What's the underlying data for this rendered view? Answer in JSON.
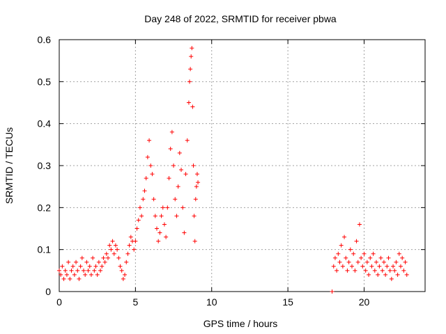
{
  "chart_data": {
    "type": "scatter",
    "title": "Day 248 of 2022, SRMTID for receiver pbwa",
    "xlabel": "GPS time / hours",
    "ylabel": "SRMTID / TECUs",
    "xlim": [
      0,
      24
    ],
    "ylim": [
      0,
      0.6
    ],
    "xticks": [
      0,
      5,
      10,
      15,
      20
    ],
    "xtick_labels": [
      "0",
      "5",
      "10",
      "15",
      "20"
    ],
    "yticks": [
      0,
      0.1,
      0.2,
      0.3,
      0.4,
      0.5,
      0.6
    ],
    "ytick_labels": [
      "0",
      "0.1",
      "0.2",
      "0.3",
      "0.4",
      "0.5",
      "0.6"
    ],
    "grid": true,
    "marker": "+",
    "color": "#ff0000",
    "series": [
      {
        "name": "SRMTID",
        "points": [
          [
            0.0,
            0.05
          ],
          [
            0.1,
            0.04
          ],
          [
            0.2,
            0.06
          ],
          [
            0.3,
            0.03
          ],
          [
            0.4,
            0.05
          ],
          [
            0.5,
            0.04
          ],
          [
            0.6,
            0.07
          ],
          [
            0.7,
            0.03
          ],
          [
            0.8,
            0.05
          ],
          [
            0.9,
            0.06
          ],
          [
            1.0,
            0.04
          ],
          [
            1.1,
            0.07
          ],
          [
            1.2,
            0.05
          ],
          [
            1.3,
            0.03
          ],
          [
            1.4,
            0.06
          ],
          [
            1.5,
            0.08
          ],
          [
            1.6,
            0.05
          ],
          [
            1.7,
            0.04
          ],
          [
            1.8,
            0.07
          ],
          [
            1.9,
            0.05
          ],
          [
            2.0,
            0.06
          ],
          [
            2.1,
            0.04
          ],
          [
            2.2,
            0.08
          ],
          [
            2.3,
            0.05
          ],
          [
            2.4,
            0.06
          ],
          [
            2.5,
            0.04
          ],
          [
            2.6,
            0.07
          ],
          [
            2.7,
            0.05
          ],
          [
            2.8,
            0.06
          ],
          [
            2.9,
            0.08
          ],
          [
            3.0,
            0.07
          ],
          [
            3.1,
            0.09
          ],
          [
            3.2,
            0.08
          ],
          [
            3.3,
            0.11
          ],
          [
            3.4,
            0.1
          ],
          [
            3.5,
            0.12
          ],
          [
            3.6,
            0.09
          ],
          [
            3.7,
            0.11
          ],
          [
            3.8,
            0.1
          ],
          [
            3.9,
            0.08
          ],
          [
            4.0,
            0.06
          ],
          [
            4.1,
            0.05
          ],
          [
            4.2,
            0.03
          ],
          [
            4.3,
            0.04
          ],
          [
            4.4,
            0.07
          ],
          [
            4.5,
            0.09
          ],
          [
            4.6,
            0.11
          ],
          [
            4.7,
            0.13
          ],
          [
            4.8,
            0.12
          ],
          [
            4.9,
            0.1
          ],
          [
            5.0,
            0.12
          ],
          [
            5.1,
            0.15
          ],
          [
            5.2,
            0.17
          ],
          [
            5.3,
            0.2
          ],
          [
            5.4,
            0.18
          ],
          [
            5.5,
            0.22
          ],
          [
            5.6,
            0.24
          ],
          [
            5.7,
            0.27
          ],
          [
            5.8,
            0.32
          ],
          [
            5.9,
            0.36
          ],
          [
            6.0,
            0.3
          ],
          [
            6.1,
            0.28
          ],
          [
            6.2,
            0.22
          ],
          [
            6.3,
            0.18
          ],
          [
            6.4,
            0.15
          ],
          [
            6.5,
            0.12
          ],
          [
            6.6,
            0.14
          ],
          [
            6.7,
            0.18
          ],
          [
            6.8,
            0.2
          ],
          [
            6.9,
            0.16
          ],
          [
            7.0,
            0.13
          ],
          [
            7.1,
            0.2
          ],
          [
            7.2,
            0.27
          ],
          [
            7.3,
            0.34
          ],
          [
            7.4,
            0.38
          ],
          [
            7.5,
            0.3
          ],
          [
            7.6,
            0.22
          ],
          [
            7.7,
            0.18
          ],
          [
            7.8,
            0.25
          ],
          [
            7.9,
            0.33
          ],
          [
            8.0,
            0.29
          ],
          [
            8.1,
            0.2
          ],
          [
            8.2,
            0.14
          ],
          [
            8.3,
            0.28
          ],
          [
            8.4,
            0.36
          ],
          [
            8.5,
            0.45
          ],
          [
            8.55,
            0.5
          ],
          [
            8.6,
            0.53
          ],
          [
            8.65,
            0.56
          ],
          [
            8.7,
            0.58
          ],
          [
            8.75,
            0.44
          ],
          [
            8.8,
            0.3
          ],
          [
            8.85,
            0.18
          ],
          [
            8.9,
            0.12
          ],
          [
            8.95,
            0.22
          ],
          [
            9.0,
            0.25
          ],
          [
            9.05,
            0.28
          ],
          [
            9.1,
            0.26
          ],
          [
            17.9,
            0.0
          ],
          [
            18.0,
            0.06
          ],
          [
            18.1,
            0.08
          ],
          [
            18.2,
            0.05
          ],
          [
            18.3,
            0.09
          ],
          [
            18.4,
            0.07
          ],
          [
            18.5,
            0.11
          ],
          [
            18.6,
            0.06
          ],
          [
            18.7,
            0.13
          ],
          [
            18.8,
            0.08
          ],
          [
            18.9,
            0.05
          ],
          [
            19.0,
            0.07
          ],
          [
            19.1,
            0.1
          ],
          [
            19.2,
            0.06
          ],
          [
            19.3,
            0.09
          ],
          [
            19.4,
            0.05
          ],
          [
            19.5,
            0.12
          ],
          [
            19.6,
            0.07
          ],
          [
            19.7,
            0.16
          ],
          [
            19.8,
            0.08
          ],
          [
            19.9,
            0.06
          ],
          [
            20.0,
            0.09
          ],
          [
            20.1,
            0.05
          ],
          [
            20.2,
            0.07
          ],
          [
            20.3,
            0.04
          ],
          [
            20.4,
            0.08
          ],
          [
            20.5,
            0.06
          ],
          [
            20.6,
            0.09
          ],
          [
            20.7,
            0.05
          ],
          [
            20.8,
            0.07
          ],
          [
            20.9,
            0.04
          ],
          [
            21.0,
            0.06
          ],
          [
            21.1,
            0.08
          ],
          [
            21.2,
            0.05
          ],
          [
            21.3,
            0.07
          ],
          [
            21.4,
            0.04
          ],
          [
            21.5,
            0.06
          ],
          [
            21.6,
            0.08
          ],
          [
            21.7,
            0.05
          ],
          [
            21.8,
            0.03
          ],
          [
            21.9,
            0.06
          ],
          [
            22.0,
            0.05
          ],
          [
            22.1,
            0.07
          ],
          [
            22.2,
            0.04
          ],
          [
            22.3,
            0.09
          ],
          [
            22.4,
            0.06
          ],
          [
            22.5,
            0.08
          ],
          [
            22.6,
            0.05
          ],
          [
            22.7,
            0.07
          ],
          [
            22.8,
            0.04
          ]
        ]
      }
    ]
  }
}
